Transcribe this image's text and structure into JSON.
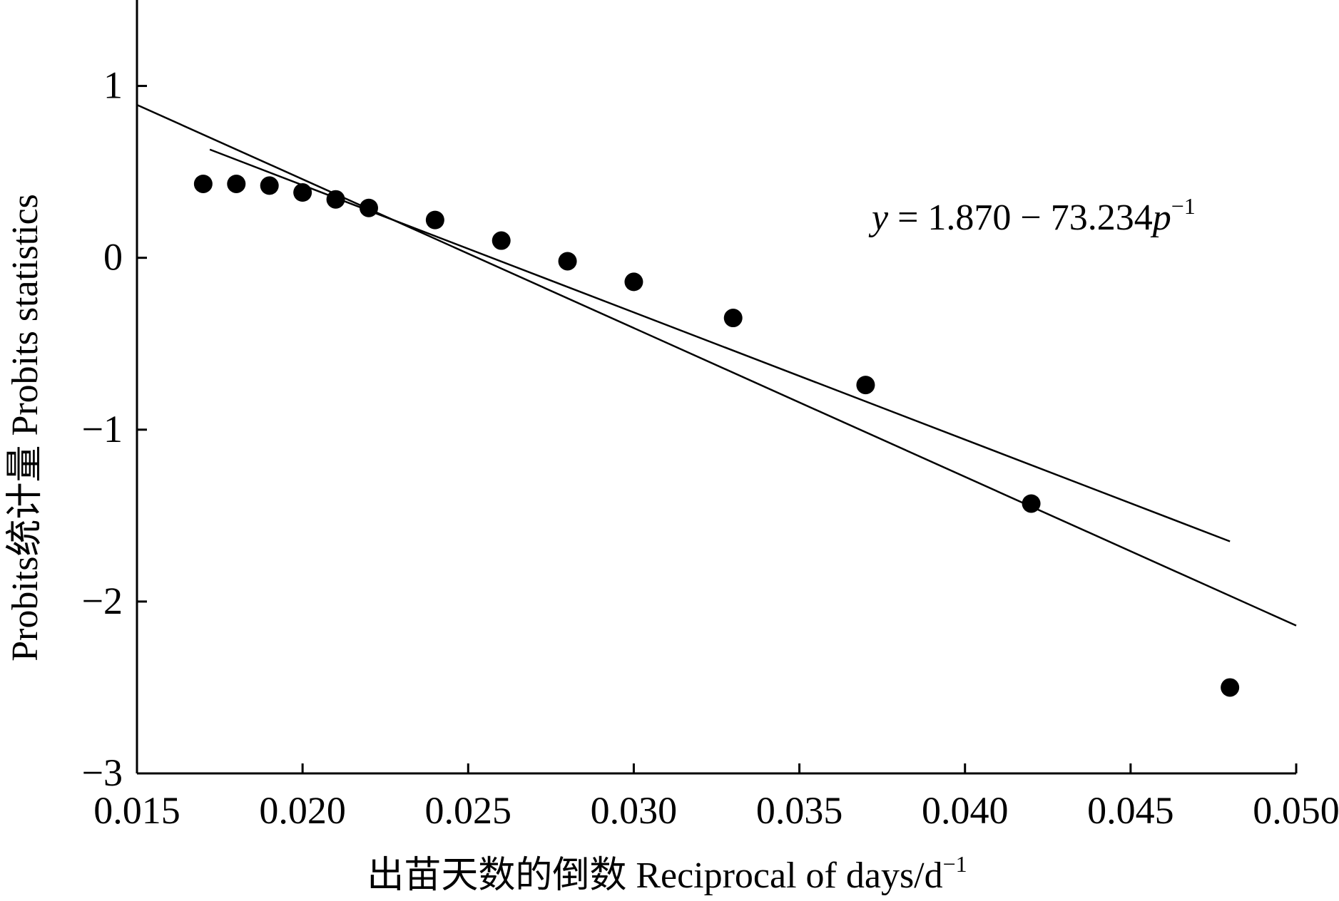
{
  "chart_data": {
    "type": "scatter",
    "xlabel": "出苗天数的倒数  Reciprocal of days/d",
    "xlabel_superscript": "−1",
    "ylabel": "Probits统计量  Probits statistics",
    "xlim": [
      0.015,
      0.05
    ],
    "ylim": [
      -3,
      1.5
    ],
    "x_ticks": [
      {
        "value": 0.015,
        "label": "0.015"
      },
      {
        "value": 0.02,
        "label": "0.020"
      },
      {
        "value": 0.025,
        "label": "0.025"
      },
      {
        "value": 0.03,
        "label": "0.030"
      },
      {
        "value": 0.035,
        "label": "0.035"
      },
      {
        "value": 0.04,
        "label": "0.040"
      },
      {
        "value": 0.045,
        "label": "0.045"
      },
      {
        "value": 0.05,
        "label": "0.050"
      }
    ],
    "y_ticks": [
      {
        "value": 1,
        "label": "1"
      },
      {
        "value": 0,
        "label": "0"
      },
      {
        "value": -1,
        "label": "−1"
      },
      {
        "value": -2,
        "label": "−2"
      },
      {
        "value": -3,
        "label": "−3"
      }
    ],
    "points": [
      {
        "x": 0.017,
        "y": 0.43
      },
      {
        "x": 0.018,
        "y": 0.43
      },
      {
        "x": 0.019,
        "y": 0.42
      },
      {
        "x": 0.02,
        "y": 0.38
      },
      {
        "x": 0.021,
        "y": 0.34
      },
      {
        "x": 0.022,
        "y": 0.29
      },
      {
        "x": 0.024,
        "y": 0.22
      },
      {
        "x": 0.026,
        "y": 0.1
      },
      {
        "x": 0.028,
        "y": -0.02
      },
      {
        "x": 0.03,
        "y": -0.14
      },
      {
        "x": 0.033,
        "y": -0.35
      },
      {
        "x": 0.037,
        "y": -0.74
      },
      {
        "x": 0.042,
        "y": -1.43
      },
      {
        "x": 0.048,
        "y": -2.5
      }
    ],
    "lines": [
      {
        "x": [
          0.015,
          0.05
        ],
        "y": [
          0.89,
          -2.14
        ]
      },
      {
        "x": [
          0.0172,
          0.048
        ],
        "y": [
          0.63,
          -1.65
        ]
      }
    ],
    "annotation": {
      "y_var": "y",
      "middle": " = 1.870 − 73.234",
      "p_var": "p",
      "superscript": "−1",
      "x": 0.0345,
      "y": 0.2
    },
    "grid": false,
    "marker_color": "#000000",
    "line_color": "#000000"
  }
}
